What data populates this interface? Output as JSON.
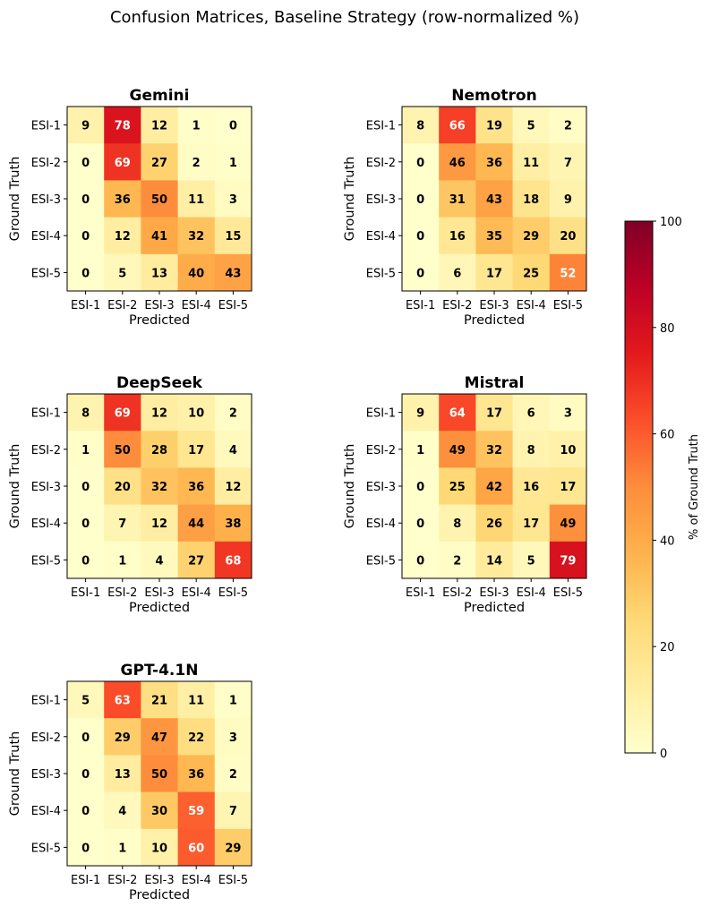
{
  "chart_data": {
    "type": "heatmap",
    "title": "Confusion Matrices, Baseline Strategy (row-normalized %)",
    "xlabel": "Predicted",
    "ylabel": "Ground Truth",
    "row_labels": [
      "ESI-1",
      "ESI-2",
      "ESI-3",
      "ESI-4",
      "ESI-5"
    ],
    "col_labels": [
      "ESI-1",
      "ESI-2",
      "ESI-3",
      "ESI-4",
      "ESI-5"
    ],
    "colormap": "YlOrRd",
    "vmin": 0,
    "vmax": 100,
    "colorbar": {
      "label": "% of Ground Truth",
      "ticks": [
        "0",
        "20",
        "40",
        "60",
        "80",
        "100"
      ]
    },
    "panels": [
      {
        "name": "Gemini",
        "values": [
          [
            9,
            78,
            12,
            1,
            0
          ],
          [
            0,
            69,
            27,
            2,
            1
          ],
          [
            0,
            36,
            50,
            11,
            3
          ],
          [
            0,
            12,
            41,
            32,
            15
          ],
          [
            0,
            5,
            13,
            40,
            43
          ]
        ]
      },
      {
        "name": "Nemotron",
        "values": [
          [
            8,
            66,
            19,
            5,
            2
          ],
          [
            0,
            46,
            36,
            11,
            7
          ],
          [
            0,
            31,
            43,
            18,
            9
          ],
          [
            0,
            16,
            35,
            29,
            20
          ],
          [
            0,
            6,
            17,
            25,
            52
          ]
        ]
      },
      {
        "name": "DeepSeek",
        "values": [
          [
            8,
            69,
            12,
            10,
            2
          ],
          [
            1,
            50,
            28,
            17,
            4
          ],
          [
            0,
            20,
            32,
            36,
            12
          ],
          [
            0,
            7,
            12,
            44,
            38
          ],
          [
            0,
            1,
            4,
            27,
            68
          ]
        ]
      },
      {
        "name": "Mistral",
        "values": [
          [
            9,
            64,
            17,
            6,
            3
          ],
          [
            1,
            49,
            32,
            8,
            10
          ],
          [
            0,
            25,
            42,
            16,
            17
          ],
          [
            0,
            8,
            26,
            17,
            49
          ],
          [
            0,
            2,
            14,
            5,
            79
          ]
        ]
      },
      {
        "name": "GPT-4.1N",
        "values": [
          [
            5,
            63,
            21,
            11,
            1
          ],
          [
            0,
            29,
            47,
            22,
            3
          ],
          [
            0,
            13,
            50,
            36,
            2
          ],
          [
            0,
            4,
            30,
            59,
            7
          ],
          [
            0,
            1,
            10,
            60,
            29
          ]
        ]
      }
    ]
  }
}
